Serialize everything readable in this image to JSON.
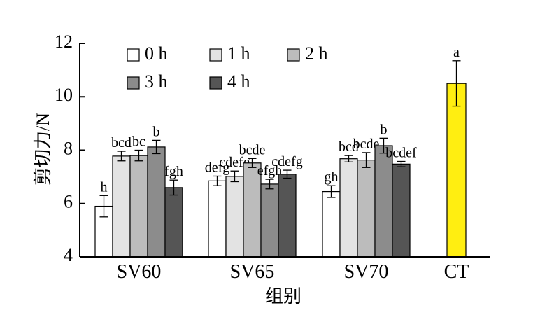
{
  "chart_data": {
    "type": "bar",
    "xlabel": "组别",
    "ylabel": "剪切力/N",
    "ylim": [
      4,
      12
    ],
    "yticks": [
      4,
      6,
      8,
      10,
      12
    ],
    "grid": false,
    "legend_placement": "top-left",
    "categories": [
      "SV60",
      "SV65",
      "SV70",
      "CT"
    ],
    "series": [
      {
        "name": "0 h",
        "color": "#ffffff",
        "values": [
          5.9,
          6.85,
          6.45,
          null
        ],
        "errors": [
          0.4,
          0.18,
          0.22,
          null
        ],
        "labels": [
          "h",
          "defg",
          "gh",
          null
        ]
      },
      {
        "name": "1 h",
        "color": "#e3e3e3",
        "values": [
          7.78,
          7.02,
          7.68,
          null
        ],
        "errors": [
          0.18,
          0.2,
          0.12,
          null
        ],
        "labels": [
          "bcd",
          "cdefg",
          "bcd",
          null
        ]
      },
      {
        "name": "2 h",
        "color": "#bcbcbc",
        "values": [
          7.8,
          7.52,
          7.63,
          null
        ],
        "errors": [
          0.2,
          0.17,
          0.28,
          null
        ],
        "labels": [
          "bc",
          "bcde",
          "bcde",
          null
        ]
      },
      {
        "name": "3 h",
        "color": "#8c8c8c",
        "values": [
          8.12,
          6.73,
          8.17,
          null
        ],
        "errors": [
          0.25,
          0.18,
          0.28,
          null
        ],
        "labels": [
          "b",
          "efgh",
          "b",
          null
        ]
      },
      {
        "name": "4 h",
        "color": "#555555",
        "values": [
          6.6,
          7.1,
          7.48,
          null
        ],
        "errors": [
          0.28,
          0.15,
          0.1,
          null
        ],
        "labels": [
          "fgh",
          "cdefg",
          "bcdef",
          null
        ]
      }
    ],
    "control": {
      "category": "CT",
      "value": 10.5,
      "error": 0.85,
      "label": "a",
      "color": "#ffee11"
    }
  }
}
